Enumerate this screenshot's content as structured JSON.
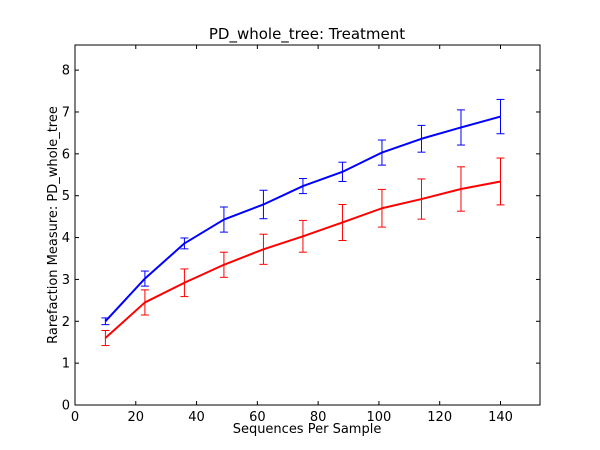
{
  "chart_data": {
    "type": "line",
    "title": "PD_whole_tree: Treatment",
    "xlabel": "Sequences Per Sample",
    "ylabel": "Rarefaction Measure: PD_whole_tree",
    "xlim": [
      0,
      153
    ],
    "ylim": [
      0,
      8.6
    ],
    "xticks": [
      "0",
      "20",
      "40",
      "60",
      "80",
      "100",
      "120",
      "140"
    ],
    "yticks": [
      "0",
      "1",
      "2",
      "3",
      "4",
      "5",
      "6",
      "7",
      "8"
    ],
    "x": [
      10,
      23,
      36,
      49,
      62,
      75,
      88,
      101,
      114,
      127,
      140
    ],
    "grid": false,
    "series": [
      {
        "color": "#0000ff",
        "values": [
          2.0,
          3.02,
          3.86,
          4.43,
          4.79,
          5.23,
          5.57,
          6.03,
          6.36,
          6.63,
          6.89
        ],
        "errors": [
          0.08,
          0.18,
          0.13,
          0.3,
          0.34,
          0.18,
          0.23,
          0.3,
          0.32,
          0.42,
          0.41
        ]
      },
      {
        "color": "#ff0000",
        "values": [
          1.6,
          2.45,
          2.92,
          3.35,
          3.72,
          4.03,
          4.36,
          4.7,
          4.92,
          5.16,
          5.34
        ],
        "errors": [
          0.18,
          0.3,
          0.33,
          0.3,
          0.36,
          0.38,
          0.43,
          0.45,
          0.48,
          0.53,
          0.56
        ]
      }
    ]
  }
}
